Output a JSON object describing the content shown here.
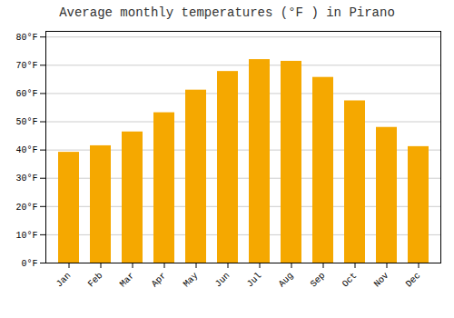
{
  "chart_data": {
    "type": "bar",
    "title": "Average monthly temperatures (°F ) in Pirano",
    "categories": [
      "Jan",
      "Feb",
      "Mar",
      "Apr",
      "May",
      "Jun",
      "Jul",
      "Aug",
      "Sep",
      "Oct",
      "Nov",
      "Dec"
    ],
    "values": [
      39.2,
      41.5,
      46.4,
      53.2,
      61.2,
      67.8,
      72.0,
      71.4,
      65.7,
      57.4,
      48.0,
      41.2
    ],
    "color": "#F5A800",
    "ylim": [
      0,
      82
    ],
    "yticks": [
      {
        "value": 0,
        "label": "0°F"
      },
      {
        "value": 10,
        "label": "10°F"
      },
      {
        "value": 20,
        "label": "20°F"
      },
      {
        "value": 30,
        "label": "30°F"
      },
      {
        "value": 40,
        "label": "40°F"
      },
      {
        "value": 50,
        "label": "50°F"
      },
      {
        "value": 60,
        "label": "60°F"
      },
      {
        "value": 70,
        "label": "70°F"
      },
      {
        "value": 80,
        "label": "80°F"
      }
    ],
    "grid": true
  }
}
